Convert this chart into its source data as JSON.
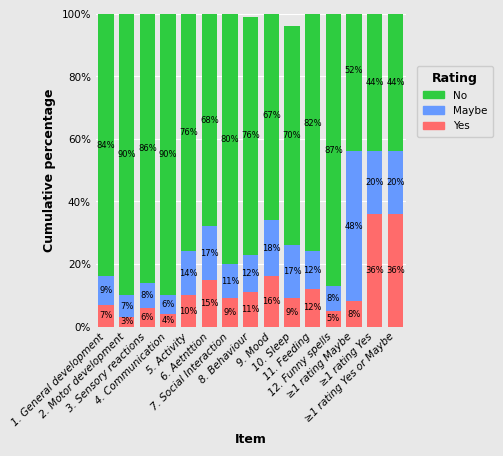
{
  "categories": [
    "1. General development",
    "2. Motor development",
    "3. Sensory reactions",
    "4. Communication",
    "5. Activity",
    "6. Aetnttion",
    "7. Social Interaction",
    "8. Behaviour",
    "9. Mood",
    "10. Sleep",
    "11. Feeding",
    "12. Funny spells",
    "≥1 rating Maybe",
    "≥1 rating Yes",
    "≥1 rating Yes or Maybe"
  ],
  "yes_pct": [
    7,
    3,
    6,
    4,
    10,
    15,
    9,
    11,
    16,
    9,
    12,
    5,
    8,
    36,
    36
  ],
  "maybe_pct": [
    9,
    7,
    8,
    6,
    14,
    17,
    11,
    12,
    18,
    17,
    12,
    8,
    48,
    20,
    20
  ],
  "no_pct": [
    84,
    90,
    86,
    90,
    76,
    68,
    80,
    76,
    67,
    70,
    82,
    87,
    52,
    44,
    44
  ],
  "color_no": "#2ecc40",
  "color_maybe": "#6699ff",
  "color_yes": "#ff6b6b",
  "xlabel": "Item",
  "ylabel": "Cumulative percentage",
  "legend_title": "Rating",
  "bg_color": "#e8e8e8",
  "label_fontsize": 9,
  "tick_fontsize": 7.5,
  "annot_fontsize": 6.0
}
